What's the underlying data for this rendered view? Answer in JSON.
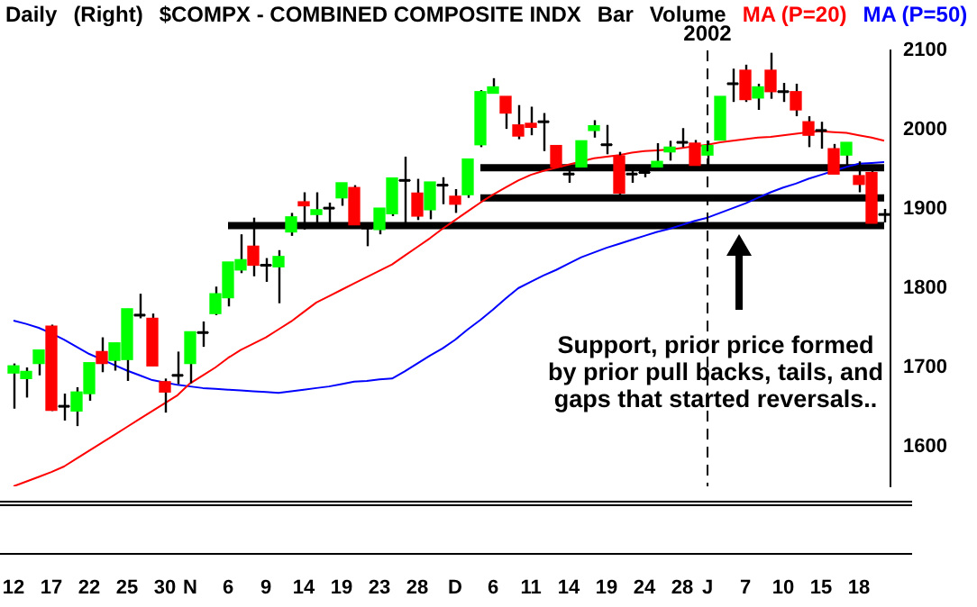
{
  "chart_data": {
    "type": "candlestick",
    "title": "$COMPX - COMBINED COMPOSITE INDX",
    "annotations": [
      "Daily",
      "(Right)",
      "Bar",
      "Volume",
      "Support, prior price formed\nby prior pull backs, tails, and\ngaps that started reversals.."
    ],
    "categories": [
      "12",
      null,
      null,
      "17",
      null,
      null,
      "22",
      null,
      null,
      "25",
      null,
      null,
      "30",
      null,
      "N",
      null,
      null,
      "6",
      null,
      null,
      "9",
      null,
      null,
      "14",
      null,
      null,
      "19",
      null,
      null,
      "23",
      null,
      null,
      "28",
      null,
      null,
      "D",
      null,
      null,
      "6",
      null,
      null,
      "11",
      null,
      null,
      "14",
      null,
      null,
      "19",
      null,
      null,
      "24",
      null,
      null,
      "28",
      null,
      "J",
      null,
      null,
      "7",
      null,
      null,
      "10",
      null,
      null,
      "15",
      null,
      null,
      "18",
      null,
      null
    ],
    "ohlc": [
      [
        1693,
        1705,
        1648,
        1702
      ],
      [
        1686,
        1700,
        1662,
        1695
      ],
      [
        1705,
        1722,
        1690,
        1722
      ],
      [
        1752,
        1754,
        1645,
        1646
      ],
      [
        1651,
        1667,
        1633,
        1651
      ],
      [
        1645,
        1675,
        1626,
        1669
      ],
      [
        1667,
        1706,
        1658,
        1706
      ],
      [
        1720,
        1738,
        1694,
        1705
      ],
      [
        1709,
        1731,
        1696,
        1731
      ],
      [
        1710,
        1774,
        1683,
        1774
      ],
      [
        1766,
        1793,
        1762,
        1766
      ],
      [
        1762,
        1768,
        1702,
        1702
      ],
      [
        1682,
        1686,
        1643,
        1669
      ],
      [
        1690,
        1720,
        1679,
        1690
      ],
      [
        1705,
        1745,
        1680,
        1745
      ],
      [
        1744,
        1758,
        1726,
        1744
      ],
      [
        1768,
        1802,
        1766,
        1793
      ],
      [
        1788,
        1833,
        1777,
        1833
      ],
      [
        1823,
        1868,
        1819,
        1836
      ],
      [
        1853,
        1889,
        1815,
        1829
      ],
      [
        1829,
        1838,
        1808,
        1829
      ],
      [
        1827,
        1848,
        1781,
        1840
      ],
      [
        1871,
        1895,
        1866,
        1890
      ],
      [
        1909,
        1921,
        1874,
        1904
      ],
      [
        1893,
        1921,
        1881,
        1899
      ],
      [
        1901,
        1908,
        1883,
        1901
      ],
      [
        1914,
        1933,
        1904,
        1933
      ],
      [
        1927,
        1930,
        1880,
        1880
      ],
      [
        1876,
        1883,
        1853,
        1876
      ],
      [
        1874,
        1901,
        1868,
        1901
      ],
      [
        1894,
        1939,
        1891,
        1939
      ],
      [
        1936,
        1966,
        1877,
        1936
      ],
      [
        1920,
        1938,
        1886,
        1891
      ],
      [
        1899,
        1934,
        1887,
        1934
      ],
      [
        1930,
        1940,
        1906,
        1930
      ],
      [
        1916,
        1925,
        1895,
        1906
      ],
      [
        1918,
        1963,
        1914,
        1963
      ],
      [
        1981,
        2050,
        1978,
        2048
      ],
      [
        2046,
        2065,
        2046,
        2054
      ],
      [
        2042,
        2042,
        2001,
        2021
      ],
      [
        2006,
        2031,
        1988,
        1992
      ],
      [
        2008,
        2029,
        1993,
        2003
      ],
      [
        2010,
        2021,
        1973,
        2010
      ],
      [
        1980,
        1980,
        1953,
        1953
      ],
      [
        1944,
        1953,
        1933,
        1944
      ],
      [
        1953,
        1986,
        1953,
        1986
      ],
      [
        1999,
        2012,
        1990,
        2005
      ],
      [
        1981,
        2006,
        1969,
        1981
      ],
      [
        1967,
        1972,
        1918,
        1920
      ],
      [
        1944,
        1948,
        1933,
        1944
      ],
      [
        1946,
        1950,
        1940,
        1946
      ],
      [
        1953,
        1983,
        1950,
        1960
      ],
      [
        1972,
        1986,
        1961,
        1978
      ],
      [
        1984,
        2002,
        1978,
        1984
      ],
      [
        1983,
        1987,
        1953,
        1955
      ],
      [
        1968,
        1986,
        1955,
        1980
      ],
      [
        1987,
        2042,
        1987,
        2042
      ],
      [
        2058,
        2077,
        2035,
        2058
      ],
      [
        2075,
        2082,
        2035,
        2038
      ],
      [
        2040,
        2058,
        2025,
        2054
      ],
      [
        2075,
        2097,
        2039,
        2048
      ],
      [
        2048,
        2059,
        2035,
        2048
      ],
      [
        2048,
        2058,
        2017,
        2025
      ],
      [
        2010,
        2017,
        1978,
        1993
      ],
      [
        1999,
        2010,
        1976,
        1999
      ],
      [
        1976,
        1982,
        1944,
        1944
      ],
      [
        1968,
        1984,
        1955,
        1984
      ],
      [
        1942,
        1960,
        1921,
        1931
      ],
      [
        1946,
        1951,
        1882,
        1882
      ],
      [
        1893,
        1900,
        1883,
        1893
      ]
    ],
    "colors": [
      "#00ff00",
      "#00ff00",
      "#00ff00",
      "#ff0000",
      "#000000",
      "#00ff00",
      "#00ff00",
      "#ff0000",
      "#00ff00",
      "#00ff00",
      "#000000",
      "#ff0000",
      "#ff0000",
      "#000000",
      "#00ff00",
      "#000000",
      "#00ff00",
      "#00ff00",
      "#00ff00",
      "#ff0000",
      "#000000",
      "#00ff00",
      "#00ff00",
      "#ff0000",
      "#00ff00",
      "#000000",
      "#00ff00",
      "#ff0000",
      "#000000",
      "#00ff00",
      "#00ff00",
      "#000000",
      "#ff0000",
      "#00ff00",
      "#000000",
      "#ff0000",
      "#00ff00",
      "#00ff00",
      "#00ff00",
      "#ff0000",
      "#ff0000",
      "#ff0000",
      "#000000",
      "#ff0000",
      "#000000",
      "#00ff00",
      "#00ff00",
      "#000000",
      "#ff0000",
      "#000000",
      "#000000",
      "#00ff00",
      "#00ff00",
      "#000000",
      "#ff0000",
      "#00ff00",
      "#00ff00",
      "#000000",
      "#ff0000",
      "#00ff00",
      "#ff0000",
      "#000000",
      "#ff0000",
      "#ff0000",
      "#000000",
      "#ff0000",
      "#00ff00",
      "#ff0000",
      "#ff0000",
      "#000000"
    ],
    "series": [
      {
        "name": "MA (P=20)",
        "type": "line",
        "color": "#ff0000",
        "values": [
          1550,
          1556,
          1562,
          1568,
          1575,
          1585,
          1595,
          1605,
          1615,
          1625,
          1635,
          1645,
          1655,
          1665,
          1680,
          1690,
          1700,
          1712,
          1722,
          1730,
          1738,
          1748,
          1758,
          1770,
          1782,
          1790,
          1798,
          1806,
          1814,
          1822,
          1830,
          1841,
          1852,
          1863,
          1875,
          1886,
          1897,
          1908,
          1918,
          1927,
          1936,
          1943,
          1948,
          1952,
          1956,
          1960,
          1964,
          1966,
          1968,
          1971,
          1973,
          1974,
          1975,
          1977,
          1979,
          1981,
          1984,
          1986,
          1988,
          1990,
          1991,
          1993,
          1995,
          1997,
          1998,
          1997,
          1996,
          1993,
          1990,
          1986
        ]
      },
      {
        "name": "MA (P=50)",
        "type": "line",
        "color": "#0000ff",
        "values": [
          1759,
          1755,
          1750,
          1743,
          1735,
          1726,
          1717,
          1710,
          1703,
          1696,
          1690,
          1684,
          1681,
          1678,
          1676,
          1674,
          1673,
          1672,
          1671,
          1670,
          1669,
          1668,
          1670,
          1672,
          1674,
          1676,
          1679,
          1682,
          1683,
          1685,
          1686,
          1695,
          1705,
          1715,
          1724,
          1735,
          1748,
          1760,
          1773,
          1787,
          1800,
          1808,
          1816,
          1823,
          1831,
          1839,
          1845,
          1851,
          1856,
          1861,
          1866,
          1871,
          1875,
          1880,
          1885,
          1889,
          1895,
          1901,
          1907,
          1914,
          1921,
          1927,
          1932,
          1938,
          1943,
          1948,
          1953,
          1957,
          1958,
          1959
        ]
      },
      {
        "type": "line",
        "color": "#000000",
        "values": [
          null,
          null,
          null,
          null,
          null,
          null,
          null,
          null,
          null,
          null,
          null,
          null,
          null,
          null,
          null,
          null,
          null,
          1879,
          1879,
          1879,
          1879,
          1879,
          1879,
          1879,
          1879,
          1879,
          1879,
          1879,
          1879,
          1879,
          1879,
          1879,
          1879,
          1879,
          1879,
          1879,
          1879,
          1879,
          1879,
          1879,
          1879,
          1879,
          1879,
          1879,
          1879,
          1879,
          1879,
          1879,
          1879,
          1879,
          1879,
          1879,
          1879,
          1879,
          1879,
          1879,
          1879,
          1879,
          1879,
          1879,
          1879,
          1879,
          1879,
          1879,
          1879,
          1879,
          1879,
          1879,
          1879,
          1879
        ]
      },
      {
        "type": "line",
        "color": "#000000",
        "values": [
          null,
          null,
          null,
          null,
          null,
          null,
          null,
          null,
          null,
          null,
          null,
          null,
          null,
          null,
          null,
          null,
          null,
          null,
          null,
          null,
          null,
          null,
          null,
          null,
          null,
          null,
          null,
          null,
          null,
          null,
          null,
          null,
          null,
          null,
          null,
          null,
          null,
          1914,
          1914,
          1914,
          1914,
          1914,
          1914,
          1914,
          1914,
          1914,
          1914,
          1914,
          1914,
          1914,
          1914,
          1914,
          1914,
          1914,
          1914,
          1914,
          1914,
          1914,
          1914,
          1914,
          1914,
          1914,
          1914,
          1914,
          1914,
          1914,
          1914,
          1914,
          1914,
          1914
        ]
      },
      {
        "type": "line",
        "color": "#000000",
        "values": [
          null,
          null,
          null,
          null,
          null,
          null,
          null,
          null,
          null,
          null,
          null,
          null,
          null,
          null,
          null,
          null,
          null,
          null,
          null,
          null,
          null,
          null,
          null,
          null,
          null,
          null,
          null,
          null,
          null,
          null,
          null,
          null,
          null,
          null,
          null,
          null,
          null,
          1952,
          1952,
          1952,
          1952,
          1952,
          1952,
          1952,
          1952,
          1952,
          1952,
          1952,
          1952,
          1952,
          1952,
          1952,
          1952,
          1952,
          1952,
          1952,
          1952,
          1952,
          1952,
          1952,
          1952,
          1952,
          1952,
          1952,
          1952,
          1952,
          1952,
          1952,
          1952,
          1952
        ]
      }
    ],
    "ylim": [
      1550,
      2100
    ],
    "yticks": [
      1600,
      1700,
      1800,
      1900,
      2000,
      2100
    ],
    "ref_lines": [
      {
        "axis": "x",
        "value": "J",
        "label": "2002",
        "line_style": "dashed",
        "color": "#000000"
      }
    ],
    "legend": "top right",
    "grid": false,
    "marker": "none"
  }
}
